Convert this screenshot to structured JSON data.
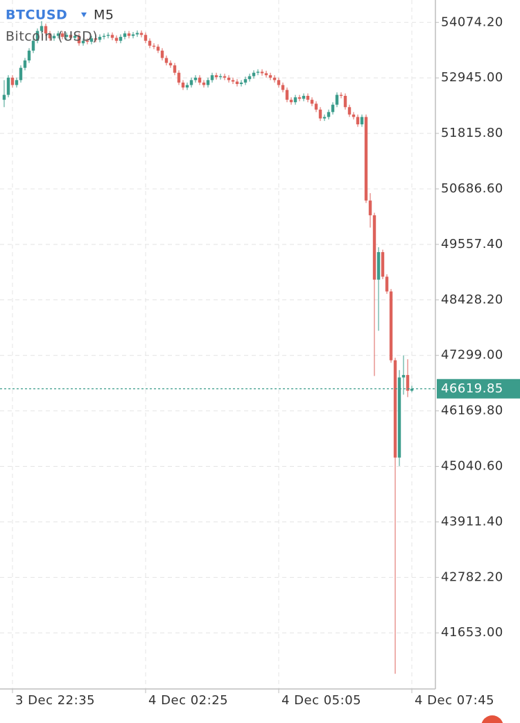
{
  "chart_data": {
    "type": "candlestick",
    "title": "BTCUSD",
    "interval": "M5",
    "subtitle": "Bitcoin (USD)",
    "up_color": "#3b9c8b",
    "down_color": "#dd625b",
    "title_color": "#3f7fdc",
    "grid": true,
    "categories": [
      null,
      null,
      "3 Dec 22:35",
      null,
      null,
      null,
      null,
      null,
      null,
      null,
      null,
      null,
      null,
      null,
      null,
      null,
      null,
      null,
      null,
      null,
      null,
      null,
      null,
      null,
      null,
      null,
      null,
      null,
      null,
      null,
      null,
      null,
      null,
      null,
      "4 Dec 02:25",
      null,
      null,
      null,
      null,
      null,
      null,
      null,
      null,
      null,
      null,
      null,
      null,
      null,
      null,
      null,
      null,
      null,
      null,
      null,
      null,
      null,
      null,
      null,
      null,
      null,
      null,
      null,
      null,
      null,
      null,
      null,
      "4 Dec 05:05",
      null,
      null,
      null,
      null,
      null,
      null,
      null,
      null,
      null,
      null,
      null,
      null,
      null,
      null,
      null,
      null,
      null,
      null,
      null,
      null,
      null,
      null,
      null,
      null,
      null,
      null,
      null,
      null,
      null,
      null,
      null,
      "4 Dec 07:45"
    ],
    "series": [
      {
        "name": "BTCUSD",
        "open": [
          52500,
          52600,
          52950,
          52800,
          52900,
          53150,
          53300,
          53500,
          53700,
          53900,
          54000,
          53850,
          53750,
          53800,
          53850,
          53780,
          53820,
          53760,
          53800,
          53650,
          53700,
          53680,
          53750,
          53720,
          53780,
          53800,
          53820,
          53760,
          53700,
          53780,
          53850,
          53800,
          53830,
          53860,
          53820,
          53700,
          53600,
          53580,
          53500,
          53350,
          53250,
          53200,
          53050,
          52850,
          52750,
          52800,
          52900,
          52950,
          52850,
          52800,
          52900,
          53000,
          52960,
          52980,
          52950,
          52900,
          52870,
          52820,
          52850,
          52920,
          52980,
          53050,
          53070,
          53040,
          53000,
          52950,
          52900,
          52800,
          52700,
          52500,
          52450,
          52550,
          52520,
          52580,
          52500,
          52420,
          52300,
          52120,
          52150,
          52250,
          52400,
          52600,
          52580,
          52350,
          52200,
          52150,
          52000,
          52150,
          50450,
          50150,
          48840,
          49400,
          48900,
          48600,
          47200,
          45220,
          46850,
          46900,
          46580
        ],
        "high": [
          52900,
          53000,
          53000,
          52950,
          53200,
          53350,
          53550,
          53750,
          53950,
          54100,
          54050,
          53900,
          53850,
          53900,
          53900,
          53870,
          53870,
          53850,
          53850,
          53750,
          53750,
          53800,
          53800,
          53830,
          53850,
          53870,
          53870,
          53810,
          53830,
          53900,
          53900,
          53880,
          53910,
          53910,
          53870,
          53750,
          53650,
          53630,
          53550,
          53400,
          53300,
          53250,
          53100,
          52900,
          52850,
          52950,
          53000,
          53000,
          52900,
          52950,
          53050,
          53050,
          53030,
          53030,
          53000,
          52950,
          52920,
          52900,
          52970,
          53030,
          53100,
          53120,
          53120,
          53090,
          53050,
          53000,
          52950,
          52850,
          52750,
          52550,
          52600,
          52600,
          52630,
          52630,
          52550,
          52470,
          52350,
          52200,
          52300,
          52450,
          52650,
          52650,
          52630,
          52400,
          52250,
          52200,
          52200,
          52200,
          50600,
          50200,
          49500,
          49450,
          48950,
          48650,
          47250,
          47000,
          47300,
          47220,
          46680
        ],
        "low": [
          52350,
          52550,
          52750,
          52750,
          52850,
          53100,
          53250,
          53450,
          53650,
          53850,
          53800,
          53700,
          53700,
          53750,
          53730,
          53730,
          53710,
          53710,
          53600,
          53600,
          53630,
          53630,
          53670,
          53670,
          53730,
          53750,
          53710,
          53650,
          53650,
          53730,
          53750,
          53750,
          53780,
          53770,
          53650,
          53550,
          53530,
          53450,
          53300,
          53200,
          53150,
          53000,
          52800,
          52700,
          52700,
          52750,
          52850,
          52800,
          52750,
          52750,
          52850,
          52910,
          52910,
          52900,
          52850,
          52820,
          52770,
          52770,
          52800,
          52870,
          52930,
          53000,
          52990,
          52950,
          52900,
          52850,
          52750,
          52650,
          52450,
          52400,
          52400,
          52470,
          52470,
          52450,
          52370,
          52250,
          52070,
          52070,
          52100,
          52200,
          52350,
          52530,
          52300,
          52150,
          52100,
          51950,
          51950,
          50400,
          49900,
          46880,
          47800,
          48850,
          48550,
          47150,
          40820,
          45050,
          46500,
          46450,
          46550
        ],
        "close": [
          52600,
          52950,
          52800,
          52900,
          53150,
          53300,
          53500,
          53700,
          53900,
          54000,
          53850,
          53750,
          53800,
          53850,
          53780,
          53820,
          53760,
          53800,
          53650,
          53700,
          53680,
          53750,
          53720,
          53780,
          53800,
          53820,
          53760,
          53700,
          53780,
          53850,
          53800,
          53830,
          53860,
          53820,
          53700,
          53600,
          53580,
          53500,
          53350,
          53250,
          53200,
          53050,
          52850,
          52750,
          52800,
          52900,
          52950,
          52850,
          52800,
          52900,
          53000,
          52960,
          52980,
          52950,
          52900,
          52870,
          52820,
          52850,
          52920,
          52980,
          53050,
          53070,
          53040,
          53000,
          52950,
          52900,
          52800,
          52700,
          52500,
          52450,
          52550,
          52520,
          52580,
          52500,
          52420,
          52300,
          52120,
          52150,
          52250,
          52400,
          52600,
          52580,
          52350,
          52200,
          52150,
          52000,
          52150,
          50450,
          50150,
          48840,
          49400,
          48900,
          48600,
          47200,
          45220,
          46850,
          46900,
          46580,
          46620
        ]
      }
    ],
    "ylim": [
      40540,
      54530
    ],
    "yticks": [
      {
        "value": 54074.2,
        "label": "54074.20"
      },
      {
        "value": 52945,
        "label": "52945.00"
      },
      {
        "value": 51815.8,
        "label": "51815.80"
      },
      {
        "value": 50686.6,
        "label": "50686.60"
      },
      {
        "value": 49557.4,
        "label": "49557.40"
      },
      {
        "value": 48428.2,
        "label": "48428.20"
      },
      {
        "value": 47299,
        "label": "47299.00"
      },
      {
        "value": 46169.8,
        "label": "46169.80"
      },
      {
        "value": 45040.6,
        "label": "45040.60"
      },
      {
        "value": 43911.4,
        "label": "43911.40"
      },
      {
        "value": 42782.2,
        "label": "42782.20"
      },
      {
        "value": 41653,
        "label": "41653.00"
      }
    ],
    "last_price": 46619.85
  }
}
